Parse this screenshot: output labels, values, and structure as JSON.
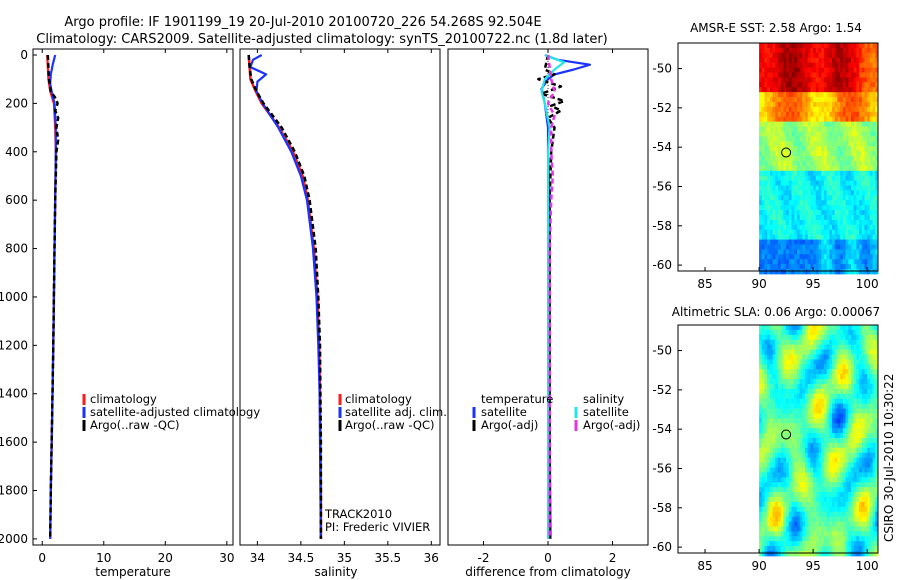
{
  "header": {
    "line1": "Argo profile: IF 1901199_19 20-Jul-2010 20100720_226 54.268S 92.504E",
    "line2": "Climatology: CARS2009. Satellite-adjusted climatology: synTS_20100722.nc (1.8d later)"
  },
  "colors": {
    "climatology": "#ff1a1a",
    "satellite": "#1a33ff",
    "argo": "#000000",
    "sal_satellite": "#22e6e6",
    "sal_argo": "#e633e6"
  },
  "chart_data": [
    {
      "type": "line",
      "id": "temperature",
      "xlabel": "temperature",
      "ylabel": "",
      "xlim": [
        -1.5,
        31
      ],
      "ylim": [
        0,
        2050
      ],
      "xticks": [
        "0",
        "10",
        "20",
        "30"
      ],
      "yticks": [
        "0",
        "200",
        "400",
        "600",
        "800",
        "1000",
        "1200",
        "1400",
        "1600",
        "1800",
        "2000"
      ],
      "legend": [
        "climatology",
        "satellite-adjusted climatology",
        "Argo(..raw -QC)"
      ],
      "series": [
        {
          "name": "climatology",
          "depth": [
            0,
            50,
            100,
            150,
            200,
            300,
            400,
            600,
            800,
            1000,
            1200,
            1500,
            1800,
            2000
          ],
          "values": [
            0.8,
            0.9,
            1.0,
            1.3,
            1.9,
            2.1,
            2.2,
            2.1,
            2.0,
            1.9,
            1.8,
            1.6,
            1.4,
            1.3
          ]
        },
        {
          "name": "satellite-adjusted climatology",
          "depth": [
            0,
            40,
            80,
            120,
            160,
            200,
            300,
            400,
            600,
            800,
            1000,
            1200,
            1500,
            1800,
            2000
          ],
          "values": [
            2.1,
            1.7,
            1.4,
            1.3,
            1.6,
            2.0,
            2.2,
            2.2,
            2.1,
            2.0,
            1.9,
            1.8,
            1.6,
            1.4,
            1.3
          ]
        },
        {
          "name": "Argo(..raw -QC)",
          "depth": [
            0,
            50,
            100,
            150,
            180,
            200,
            230,
            260,
            300,
            350,
            400,
            600,
            800,
            1000,
            1200,
            1500,
            1800,
            2000
          ],
          "values": [
            0.9,
            1.0,
            1.1,
            1.4,
            2.2,
            2.5,
            2.1,
            2.6,
            2.3,
            2.6,
            2.3,
            2.1,
            2.0,
            1.9,
            1.8,
            1.6,
            1.4,
            1.3
          ]
        }
      ]
    },
    {
      "type": "line",
      "id": "salinity",
      "xlabel": "salinity",
      "xlim": [
        33.8,
        36.1
      ],
      "ylim": [
        0,
        2050
      ],
      "xticks": [
        "34",
        "34.5",
        "35",
        "35.5",
        "36"
      ],
      "legend": [
        "climatology",
        "satellite adj. clim.",
        "Argo(..raw -QC)"
      ],
      "annotations": [
        "TRACK2010",
        "PI: Frederic VIVIER"
      ],
      "series": [
        {
          "name": "climatology",
          "depth": [
            0,
            50,
            100,
            150,
            200,
            300,
            400,
            500,
            600,
            800,
            1000,
            1200,
            1400,
            1600,
            1800,
            2000
          ],
          "values": [
            33.9,
            33.91,
            33.92,
            33.98,
            34.05,
            34.25,
            34.41,
            34.52,
            34.58,
            34.65,
            34.69,
            34.71,
            34.72,
            34.725,
            34.73,
            34.73
          ]
        },
        {
          "name": "satellite adj. clim.",
          "depth": [
            0,
            20,
            50,
            80,
            110,
            150,
            200,
            300,
            400,
            500,
            600,
            800,
            1000,
            1200,
            1400,
            1600,
            1800,
            2000
          ],
          "values": [
            34.05,
            33.95,
            33.92,
            34.1,
            34.0,
            33.99,
            34.06,
            34.24,
            34.39,
            34.5,
            34.57,
            34.64,
            34.68,
            34.7,
            34.715,
            34.72,
            34.725,
            34.73
          ]
        },
        {
          "name": "Argo(..raw -QC)",
          "depth": [
            0,
            50,
            100,
            150,
            200,
            300,
            400,
            500,
            600,
            800,
            1000,
            1200,
            1400,
            1600,
            1800,
            2000
          ],
          "values": [
            33.9,
            33.91,
            33.93,
            33.99,
            34.07,
            34.28,
            34.43,
            34.54,
            34.6,
            34.67,
            34.7,
            34.72,
            34.725,
            34.73,
            34.73,
            34.73
          ]
        }
      ]
    },
    {
      "type": "line",
      "id": "difference",
      "xlabel": "difference from climatology",
      "xlim": [
        -3.1,
        3.1
      ],
      "ylim": [
        0,
        2050
      ],
      "xticks": [
        "-2",
        "0",
        "2"
      ],
      "legend_headers": [
        "temperature",
        "salinity"
      ],
      "legend": [
        "satellite",
        "Argo(-adj)",
        "satellite",
        "Argo(-adj)"
      ],
      "series": [
        {
          "name": "temperature satellite",
          "depth": [
            0,
            20,
            40,
            60,
            80,
            100,
            140,
            200,
            300,
            400,
            600,
            800,
            1000,
            1500,
            2000
          ],
          "values": [
            -0.1,
            0.3,
            1.3,
            0.8,
            0.2,
            0.0,
            -0.2,
            -0.1,
            0.0,
            0.0,
            0.05,
            0.05,
            0.05,
            0.05,
            0.08
          ]
        },
        {
          "name": "temperature Argo(-adj)",
          "depth": [
            0,
            60,
            80,
            100,
            130,
            160,
            190,
            210,
            230,
            260,
            300,
            400,
            600,
            800,
            1000,
            1500,
            2000
          ],
          "values": [
            0.0,
            -0.1,
            0.2,
            -0.3,
            0.4,
            -0.2,
            0.5,
            0.1,
            0.4,
            0.0,
            0.2,
            0.1,
            0.05,
            0.05,
            0.05,
            0.05,
            0.05
          ]
        },
        {
          "name": "salinity satellite",
          "depth": [
            0,
            30,
            60,
            100,
            150,
            200,
            300,
            400,
            600,
            800,
            1000,
            1500,
            2000
          ],
          "values": [
            -0.1,
            0.5,
            0.2,
            -0.1,
            -0.2,
            -0.1,
            0.05,
            0.0,
            0.0,
            0.0,
            0.0,
            0.0,
            0.0
          ]
        },
        {
          "name": "salinity Argo(-adj)",
          "depth": [
            0,
            100,
            150,
            200,
            250,
            300,
            400,
            500,
            600,
            800,
            1000,
            1500,
            2000
          ],
          "values": [
            0.0,
            0.1,
            0.2,
            0.0,
            0.2,
            0.1,
            0.1,
            0.15,
            0.1,
            0.05,
            0.05,
            0.05,
            0.05
          ]
        }
      ]
    },
    {
      "type": "heatmap",
      "id": "sst-map",
      "title": "AMSR-E SST: 2.58 Argo: 1.54",
      "xlim": [
        82.5,
        101
      ],
      "ylim": [
        -60.3,
        -48.7
      ],
      "xticks": [
        "85",
        "90",
        "95",
        "100"
      ],
      "yticks": [
        "-50",
        "-52",
        "-54",
        "-56",
        "-58",
        "-60"
      ],
      "data_lon": [
        90,
        101
      ],
      "argo_position": [
        92.5,
        -54.27
      ]
    },
    {
      "type": "heatmap",
      "id": "sla-map",
      "title": "Altimetric SLA: 0.06 Argo: 0.00067",
      "xlim": [
        82.5,
        101
      ],
      "ylim": [
        -60.3,
        -48.7
      ],
      "xticks": [
        "85",
        "90",
        "95",
        "100"
      ],
      "yticks": [
        "-50",
        "-52",
        "-54",
        "-56",
        "-58",
        "-60"
      ],
      "data_lon": [
        90,
        101
      ],
      "argo_position": [
        92.5,
        -54.27
      ]
    }
  ],
  "side_label": "CSIRO 30-Jul-2010 10:30:22"
}
